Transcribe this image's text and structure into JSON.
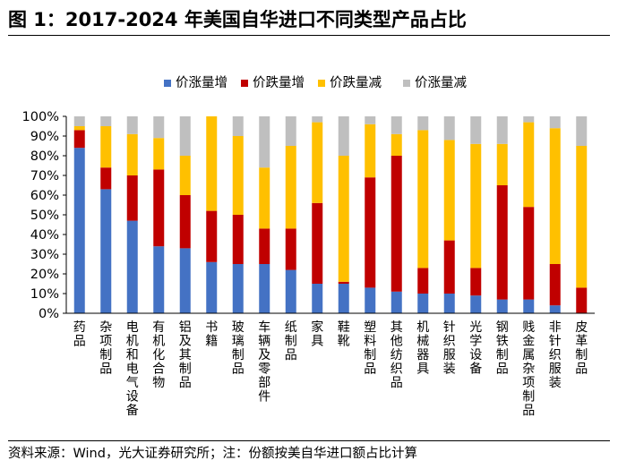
{
  "title": "图 1：2017-2024 年美国自华进口不同类型产品占比",
  "source_note": "资料来源：Wind，光大证券研究所；注：份额按美自华进口额占比计算",
  "chart_data": {
    "type": "bar",
    "stacked": true,
    "categories": [
      "药品",
      "杂项制品",
      "电机和电气设备",
      "有机化合物",
      "铝及其制品",
      "书籍",
      "玻璃制品",
      "车辆及零部件",
      "纸制品",
      "家具",
      "鞋靴",
      "塑料制品",
      "其他纺织品",
      "机械器具",
      "针织服装",
      "光学设备",
      "钢铁制品",
      "贱金属杂项制品",
      "非针织服装",
      "皮革制品"
    ],
    "series": [
      {
        "name": "价涨量增",
        "color": "#4472C4",
        "values": [
          84,
          63,
          47,
          34,
          33,
          26,
          25,
          25,
          22,
          15,
          15,
          13,
          11,
          10,
          10,
          9,
          7,
          7,
          4,
          0
        ]
      },
      {
        "name": "价跌量增",
        "color": "#C00000",
        "values": [
          9,
          11,
          23,
          39,
          27,
          26,
          25,
          18,
          21,
          41,
          1,
          56,
          69,
          13,
          27,
          14,
          58,
          47,
          21,
          13
        ]
      },
      {
        "name": "价跌量减",
        "color": "#FFC000",
        "values": [
          2,
          21,
          21,
          16,
          20,
          48,
          40,
          31,
          42,
          41,
          64,
          27,
          11,
          70,
          51,
          63,
          21,
          43,
          69,
          72
        ]
      },
      {
        "name": "价涨量减",
        "color": "#BFBFBF",
        "values": [
          5,
          5,
          9,
          11,
          20,
          0,
          10,
          26,
          15,
          3,
          20,
          4,
          9,
          7,
          12,
          14,
          14,
          3,
          6,
          15
        ]
      }
    ],
    "yticks": [
      "0%",
      "10%",
      "20%",
      "30%",
      "40%",
      "50%",
      "60%",
      "70%",
      "80%",
      "90%",
      "100%"
    ],
    "ylim": [
      0,
      100
    ],
    "legend": "top-center"
  }
}
